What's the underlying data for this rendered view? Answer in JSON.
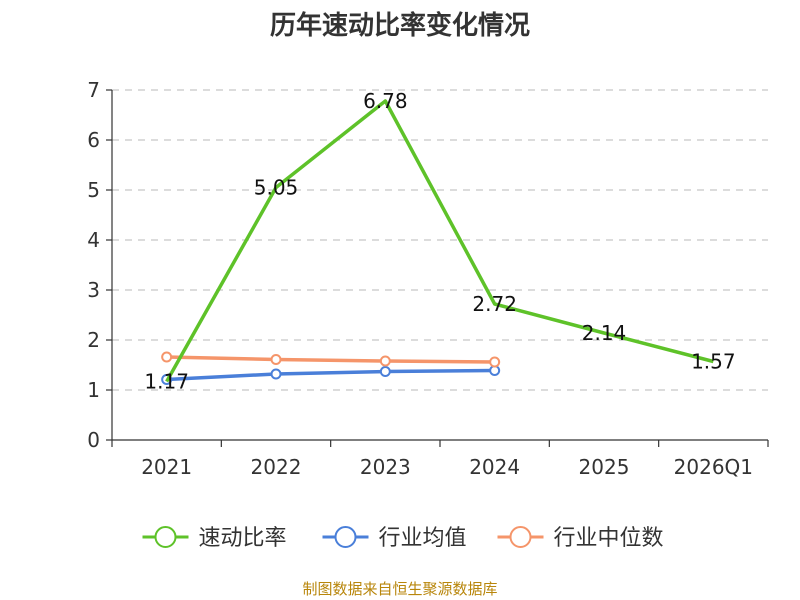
{
  "chart_data": {
    "type": "line",
    "title": "历年速动比率变化情况",
    "categories": [
      "2021",
      "2022",
      "2023",
      "2024",
      "2025",
      "2026Q1"
    ],
    "ylim": [
      0,
      7
    ],
    "yticks": [
      0,
      1,
      2,
      3,
      4,
      5,
      6,
      7
    ],
    "grid": true,
    "legend_position": "bottom",
    "series": [
      {
        "name": "速动比率",
        "color": "#5ec229",
        "values": [
          1.17,
          5.05,
          6.78,
          2.72,
          2.14,
          1.57
        ],
        "labels": [
          "1.17",
          "5.05",
          "6.78",
          "2.72",
          "2.14",
          "1.57"
        ],
        "show_markers": false
      },
      {
        "name": "行业均值",
        "color": "#4a7fd9",
        "values": [
          1.21,
          1.32,
          1.37,
          1.39,
          null,
          null
        ],
        "show_markers": true
      },
      {
        "name": "行业中位数",
        "color": "#f5956a",
        "values": [
          1.66,
          1.61,
          1.58,
          1.56,
          null,
          null
        ],
        "show_markers": true
      }
    ],
    "source": "制图数据来自恒生聚源数据库"
  }
}
